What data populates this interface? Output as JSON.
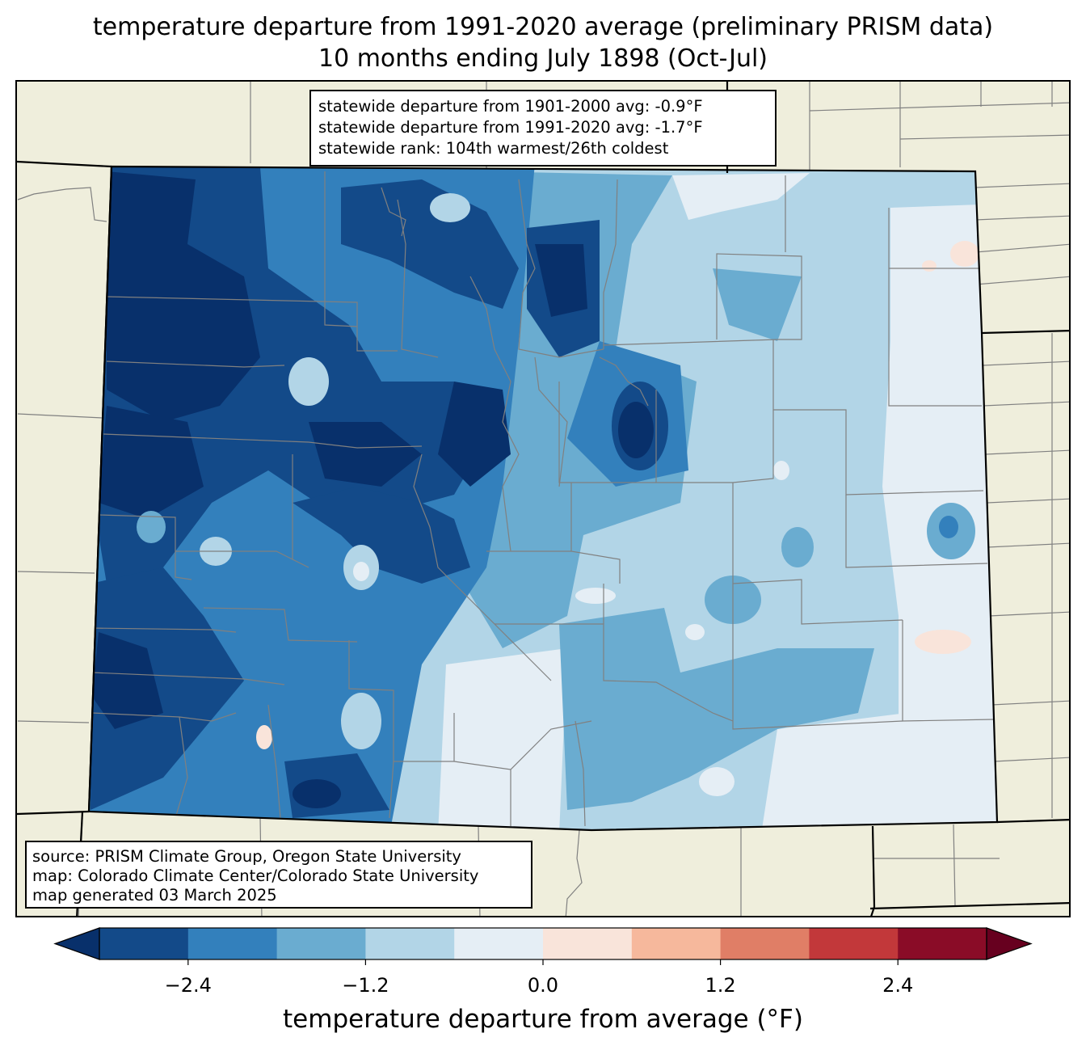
{
  "title": {
    "line1": "temperature departure from 1991-2020 average (preliminary PRISM data)",
    "line2": "10 months ending July 1898 (Oct-Jul)"
  },
  "stats": {
    "line1": "statewide departure from 1901-2000 avg: -0.9°F",
    "line2": "statewide departure from 1991-2020 avg: -1.7°F",
    "line3": "statewide rank: 104th warmest/26th coldest"
  },
  "source": {
    "line1": "source: PRISM Climate Group, Oregon State University",
    "line2": "map: Colorado Climate Center/Colorado State University",
    "line3": "map generated 03 March 2025"
  },
  "colorbar": {
    "label": "temperature departure from average (°F)",
    "ticks": [
      {
        "value": -2.4,
        "label": "−2.4"
      },
      {
        "value": -1.2,
        "label": "−1.2"
      },
      {
        "value": 0.0,
        "label": "0.0"
      },
      {
        "value": 1.2,
        "label": "1.2"
      },
      {
        "value": 2.4,
        "label": "2.4"
      }
    ],
    "range": [
      -3.0,
      3.0
    ],
    "levels": [
      -3.0,
      -2.4,
      -1.8,
      -1.2,
      -0.6,
      0.0,
      0.6,
      1.2,
      1.8,
      2.4,
      3.0
    ],
    "under_color": "#08306b",
    "over_color": "#67001f",
    "colors": [
      "#134a89",
      "#3380bc",
      "#6aacd0",
      "#b2d5e7",
      "#e5eef5",
      "#f9e4da",
      "#f6b89c",
      "#e07e66",
      "#c2383a",
      "#8a0c27"
    ]
  },
  "map_colors": {
    "background": "#efeedc",
    "county_lines": "#808080",
    "state_lines": "#000000"
  }
}
